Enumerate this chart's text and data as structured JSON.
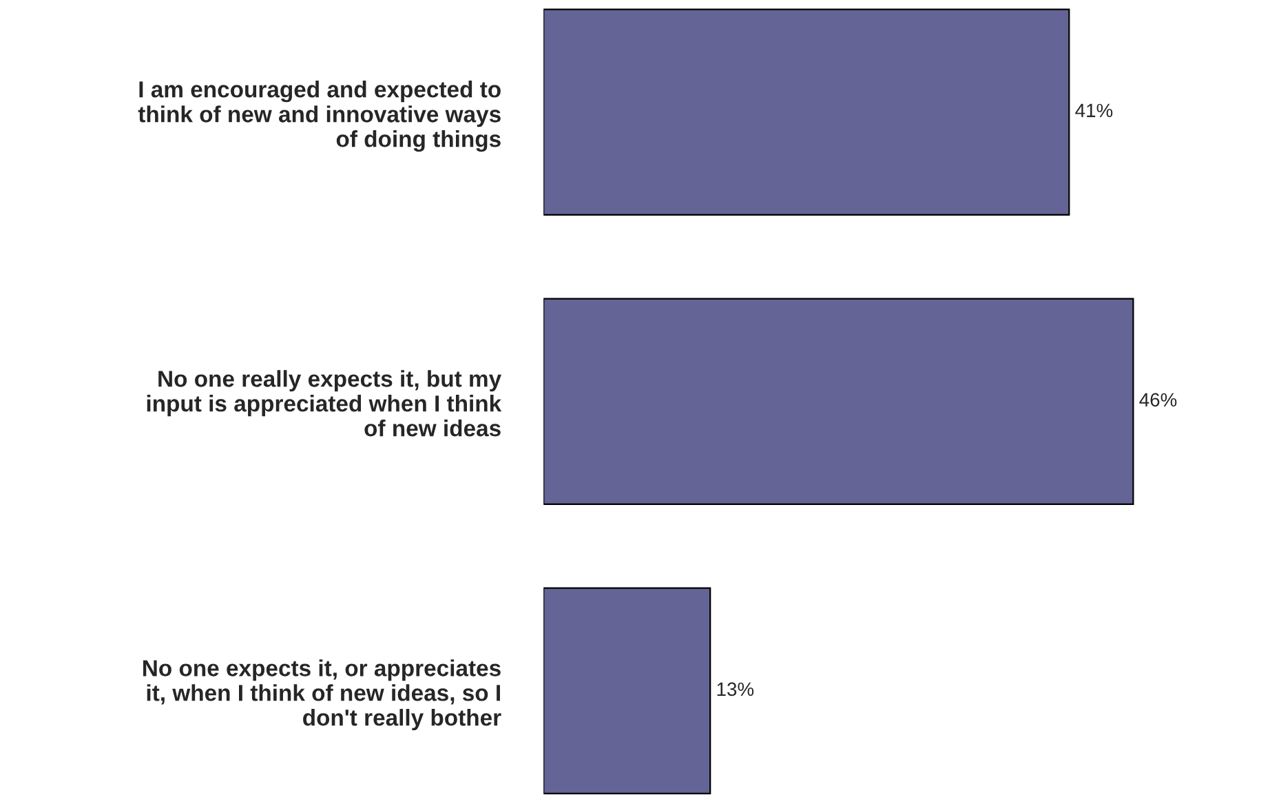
{
  "chart_data": {
    "type": "bar",
    "orientation": "horizontal",
    "categories": [
      "I am encouraged and expected to\nthink of new and innovative ways\nof doing things",
      "No one really expects it, but my\ninput is appreciated when I think\nof new ideas",
      "No one expects it, or appreciates\nit, when I think of new ideas, so I\ndon't really bother"
    ],
    "values": [
      41,
      46,
      13
    ],
    "value_labels": [
      "41%",
      "46%",
      "13%"
    ],
    "color": "#646496"
  }
}
